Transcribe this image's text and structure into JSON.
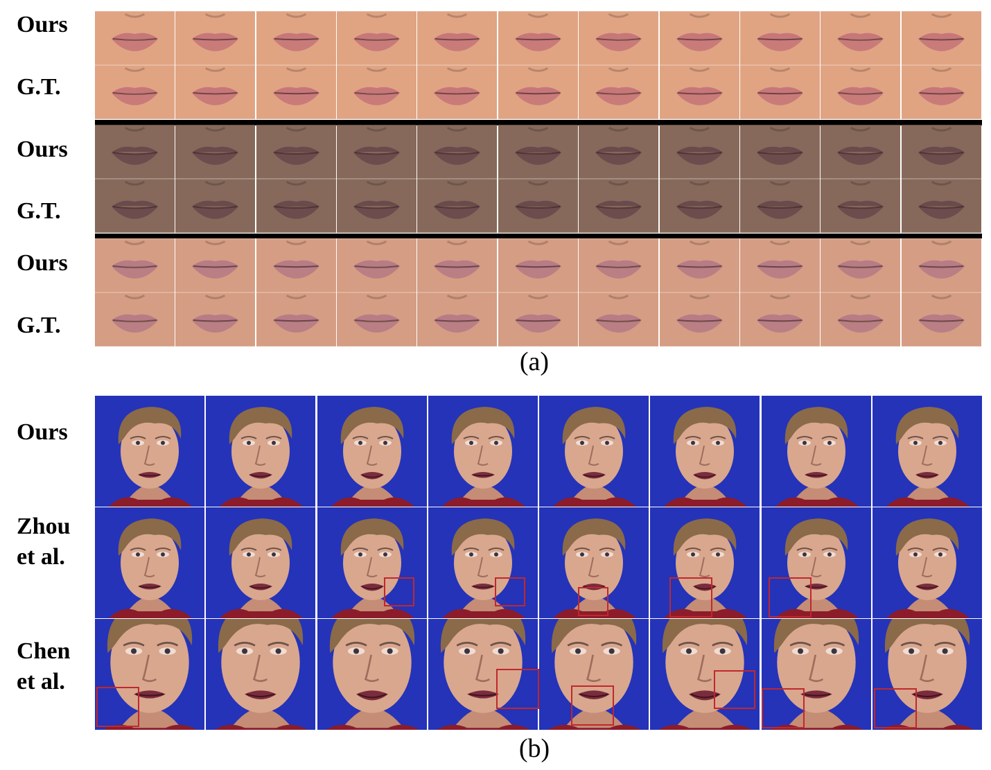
{
  "panel_a": {
    "caption": "(a)",
    "rows": [
      {
        "label": "Ours",
        "group": 0
      },
      {
        "label": "G.T.",
        "group": 0
      },
      {
        "label": "Ours",
        "group": 1
      },
      {
        "label": "G.T.",
        "group": 1
      },
      {
        "label": "Ours",
        "group": 2
      },
      {
        "label": "G.T.",
        "group": 2
      }
    ],
    "frames_per_row": 11,
    "skin_colors": [
      "#e0a483",
      "#86695a",
      "#d59d83"
    ],
    "lip_colors": [
      "#c7777a",
      "#6b4a4d",
      "#b77c86"
    ]
  },
  "panel_b": {
    "caption": "(b)",
    "rows": [
      {
        "label_lines": [
          "Ours"
        ]
      },
      {
        "label_lines": [
          "Zhou",
          "et al."
        ]
      },
      {
        "label_lines": [
          "Chen",
          "et al."
        ]
      }
    ],
    "frames_per_row": 8,
    "background_color": "#2433b8",
    "hair_color": "#8a6a48",
    "skin_color": "#d9a78e",
    "highlight_color": "#c0282d",
    "highlighted_frames": {
      "zhou": [
        2,
        3,
        4,
        5,
        6
      ],
      "chen": [
        0,
        3,
        4,
        5,
        6,
        7
      ]
    }
  }
}
